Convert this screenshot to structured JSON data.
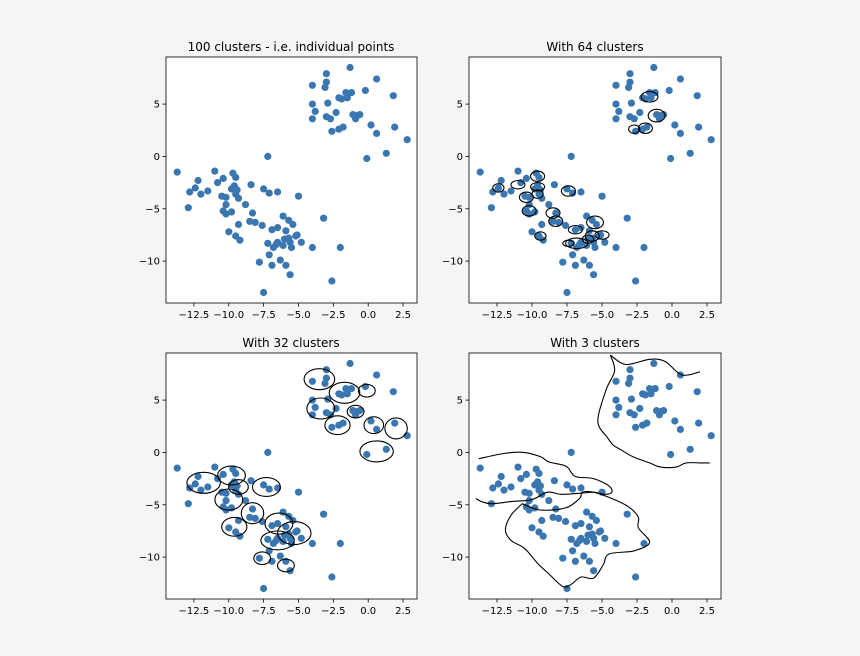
{
  "chart_data": [
    {
      "type": "scatter",
      "title": "100 clusters - i.e. individual points",
      "xlabel": "",
      "ylabel": "",
      "xlim": [
        -14.5,
        3.5
      ],
      "ylim": [
        -14,
        9.5
      ],
      "xticks": [
        -12.5,
        -10.0,
        -7.5,
        -5.0,
        -2.5,
        0.0,
        2.5
      ],
      "xtick_labels": [
        "−12.5",
        "−10.0",
        "−7.5",
        "−5.0",
        "−2.5",
        "0.0",
        "2.5"
      ],
      "yticks": [
        5,
        0,
        -5,
        -10
      ],
      "ytick_labels": [
        "5",
        "0",
        "−5",
        "−10"
      ],
      "grid": false
    },
    {
      "type": "scatter",
      "title": "With 64 clusters",
      "xlabel": "",
      "ylabel": "",
      "xlim": [
        -14.5,
        3.5
      ],
      "ylim": [
        -14,
        9.5
      ],
      "xticks": [
        -12.5,
        -10.0,
        -7.5,
        -5.0,
        -2.5,
        0.0,
        2.5
      ],
      "xtick_labels": [
        "−12.5",
        "−10.0",
        "−7.5",
        "−5.0",
        "−2.5",
        "0.0",
        "2.5"
      ],
      "yticks": [
        5,
        0,
        -5,
        -10
      ],
      "ytick_labels": [
        "5",
        "0",
        "−5",
        "−10"
      ],
      "grid": false
    },
    {
      "type": "scatter",
      "title": "With 32 clusters",
      "xlabel": "",
      "ylabel": "",
      "xlim": [
        -14.5,
        3.5
      ],
      "ylim": [
        -14,
        9.5
      ],
      "xticks": [
        -12.5,
        -10.0,
        -7.5,
        -5.0,
        -2.5,
        0.0,
        2.5
      ],
      "xtick_labels": [
        "−12.5",
        "−10.0",
        "−7.5",
        "−5.0",
        "−2.5",
        "0.0",
        "2.5"
      ],
      "yticks": [
        5,
        0,
        -5,
        -10
      ],
      "ytick_labels": [
        "5",
        "0",
        "−5",
        "−10"
      ],
      "grid": false
    },
    {
      "type": "scatter",
      "title": "With 3 clusters",
      "xlabel": "",
      "ylabel": "",
      "xlim": [
        -14.5,
        3.5
      ],
      "ylim": [
        -14,
        9.5
      ],
      "xticks": [
        -12.5,
        -10.0,
        -7.5,
        -5.0,
        -2.5,
        0.0,
        2.5
      ],
      "xtick_labels": [
        "−12.5",
        "−10.0",
        "−7.5",
        "−5.0",
        "−2.5",
        "0.0",
        "2.5"
      ],
      "yticks": [
        5,
        0,
        -5,
        -10
      ],
      "ytick_labels": [
        "5",
        "0",
        "−5",
        "−10"
      ],
      "grid": false
    }
  ],
  "points": [
    [
      -3.0,
      7.9
    ],
    [
      -1.3,
      8.5
    ],
    [
      0.6,
      7.4
    ],
    [
      -3.0,
      7.1
    ],
    [
      -4.0,
      6.8
    ],
    [
      -3.1,
      6.6
    ],
    [
      -0.2,
      6.3
    ],
    [
      -1.6,
      6.1
    ],
    [
      -1.2,
      6.1
    ],
    [
      1.8,
      5.8
    ],
    [
      -2.1,
      5.6
    ],
    [
      -1.9,
      5.5
    ],
    [
      -1.5,
      5.6
    ],
    [
      -4.0,
      5.0
    ],
    [
      -2.9,
      5.1
    ],
    [
      -3.8,
      4.3
    ],
    [
      -2.3,
      4.2
    ],
    [
      -1.1,
      4.0
    ],
    [
      -0.6,
      4.0
    ],
    [
      -0.9,
      3.6
    ],
    [
      -2.7,
      3.6
    ],
    [
      -3.0,
      3.8
    ],
    [
      -4.0,
      3.6
    ],
    [
      -0.8,
      3.9
    ],
    [
      0.2,
      3.0
    ],
    [
      -2.1,
      2.6
    ],
    [
      -2.6,
      2.4
    ],
    [
      -1.8,
      2.8
    ],
    [
      0.6,
      2.2
    ],
    [
      1.9,
      2.8
    ],
    [
      2.8,
      1.6
    ],
    [
      1.3,
      0.3
    ],
    [
      -0.1,
      -0.2
    ],
    [
      -7.2,
      0.0
    ],
    [
      -13.7,
      -1.5
    ],
    [
      -11.0,
      -1.4
    ],
    [
      -9.7,
      -1.6
    ],
    [
      -9.5,
      -2.0
    ],
    [
      -12.2,
      -2.3
    ],
    [
      -10.4,
      -2.1
    ],
    [
      -10.8,
      -2.5
    ],
    [
      -9.6,
      -2.8
    ],
    [
      -8.4,
      -2.7
    ],
    [
      -12.4,
      -3.0
    ],
    [
      -11.5,
      -3.3
    ],
    [
      -9.8,
      -3.1
    ],
    [
      -9.4,
      -3.2
    ],
    [
      -7.5,
      -3.1
    ],
    [
      -12.8,
      -3.4
    ],
    [
      -9.5,
      -3.6
    ],
    [
      -7.1,
      -3.5
    ],
    [
      -6.5,
      -3.4
    ],
    [
      -12.0,
      -3.6
    ],
    [
      -10.5,
      -3.8
    ],
    [
      -10.2,
      -3.9
    ],
    [
      -9.3,
      -4.0
    ],
    [
      -5.0,
      -3.8
    ],
    [
      -12.9,
      -4.9
    ],
    [
      -10.2,
      -4.6
    ],
    [
      -8.8,
      -4.6
    ],
    [
      -10.4,
      -5.2
    ],
    [
      -9.8,
      -5.3
    ],
    [
      -10.2,
      -5.5
    ],
    [
      -8.3,
      -5.4
    ],
    [
      -6.1,
      -5.7
    ],
    [
      -3.2,
      -5.9
    ],
    [
      -8.5,
      -6.2
    ],
    [
      -8.1,
      -6.3
    ],
    [
      -5.7,
      -6.1
    ],
    [
      -7.6,
      -6.6
    ],
    [
      -9.3,
      -6.5
    ],
    [
      -5.4,
      -6.5
    ],
    [
      -10.0,
      -7.2
    ],
    [
      -6.9,
      -7.0
    ],
    [
      -6.5,
      -6.8
    ],
    [
      -5.9,
      -7.1
    ],
    [
      -9.5,
      -7.6
    ],
    [
      -9.2,
      -8.0
    ],
    [
      -5.7,
      -7.8
    ],
    [
      -5.1,
      -7.5
    ],
    [
      -6.0,
      -7.9
    ],
    [
      -7.2,
      -8.3
    ],
    [
      -6.6,
      -8.4
    ],
    [
      -6.1,
      -8.5
    ],
    [
      -5.6,
      -8.2
    ],
    [
      -4.8,
      -8.2
    ],
    [
      -6.8,
      -8.7
    ],
    [
      -5.5,
      -8.7
    ],
    [
      -6.5,
      -8.2
    ],
    [
      -4.0,
      -8.7
    ],
    [
      -2.0,
      -8.7
    ],
    [
      -7.1,
      -9.4
    ],
    [
      -6.3,
      -9.9
    ],
    [
      -7.8,
      -10.1
    ],
    [
      -6.9,
      -10.4
    ],
    [
      -5.9,
      -10.4
    ],
    [
      -5.6,
      -11.3
    ],
    [
      -2.6,
      -11.9
    ],
    [
      -7.5,
      -13.0
    ],
    [
      -5.2,
      -7.6
    ]
  ],
  "clusters_64": [
    [
      -1.6,
      5.7,
      0.6,
      0.5
    ],
    [
      -1.1,
      3.9,
      0.6,
      0.6
    ],
    [
      -2.7,
      2.6,
      0.4,
      0.4
    ],
    [
      -1.9,
      2.7,
      0.5,
      0.5
    ],
    [
      -9.6,
      -1.9,
      0.5,
      0.5
    ],
    [
      -12.4,
      -3.0,
      0.4,
      0.4
    ],
    [
      -11.0,
      -2.7,
      0.5,
      0.4
    ],
    [
      -9.6,
      -2.9,
      0.5,
      0.4
    ],
    [
      -9.6,
      -3.6,
      0.4,
      0.4
    ],
    [
      -10.4,
      -3.9,
      0.5,
      0.5
    ],
    [
      -7.4,
      -3.3,
      0.5,
      0.5
    ],
    [
      -10.2,
      -5.2,
      0.5,
      0.5
    ],
    [
      -8.5,
      -5.4,
      0.5,
      0.5
    ],
    [
      -8.3,
      -6.2,
      0.5,
      0.5
    ],
    [
      -5.5,
      -6.3,
      0.6,
      0.6
    ],
    [
      -9.4,
      -7.6,
      0.4,
      0.4
    ],
    [
      -6.9,
      -7.0,
      0.5,
      0.4
    ],
    [
      -5.7,
      -7.6,
      0.5,
      0.5
    ],
    [
      -5.0,
      -7.5,
      0.5,
      0.4
    ],
    [
      -6.8,
      -8.3,
      0.8,
      0.5
    ],
    [
      -7.4,
      -8.3,
      0.4,
      0.3
    ],
    [
      -6.0,
      -7.9,
      0.4,
      0.4
    ]
  ],
  "clusters_32": [
    [
      -3.5,
      7.0,
      1.1,
      1.0
    ],
    [
      -1.7,
      5.7,
      1.1,
      1.0
    ],
    [
      -0.1,
      5.9,
      0.6,
      0.6
    ],
    [
      -3.4,
      4.2,
      1.0,
      1.0
    ],
    [
      -0.9,
      3.9,
      0.6,
      0.6
    ],
    [
      -2.2,
      2.6,
      0.9,
      0.9
    ],
    [
      0.4,
      2.6,
      0.7,
      0.8
    ],
    [
      2.0,
      2.3,
      0.8,
      1.0
    ],
    [
      0.6,
      0.1,
      1.2,
      1.0
    ],
    [
      -11.8,
      -2.9,
      1.2,
      1.0
    ],
    [
      -9.8,
      -2.2,
      1.0,
      0.9
    ],
    [
      -10.0,
      -4.5,
      1.0,
      1.0
    ],
    [
      -9.3,
      -3.3,
      0.7,
      0.7
    ],
    [
      -7.3,
      -3.3,
      1.0,
      0.9
    ],
    [
      -8.3,
      -5.8,
      0.8,
      1.0
    ],
    [
      -9.6,
      -7.1,
      0.9,
      0.9
    ],
    [
      -6.4,
      -6.8,
      1.0,
      1.0
    ],
    [
      -5.3,
      -7.7,
      1.2,
      1.1
    ],
    [
      -6.5,
      -8.4,
      1.2,
      0.9
    ],
    [
      -7.6,
      -10.1,
      0.6,
      0.6
    ],
    [
      -5.9,
      -10.8,
      0.6,
      0.6
    ]
  ],
  "boundaries_3": [
    [
      [
        -4.4,
        9.3
      ],
      [
        -3.3,
        8.4
      ],
      [
        -1.6,
        8.9
      ],
      [
        -0.5,
        8.7
      ],
      [
        0.7,
        7.4
      ],
      [
        2.0,
        7.7
      ]
    ],
    [
      [
        -4.4,
        9.3
      ],
      [
        -4.1,
        7.8
      ],
      [
        -4.7,
        6.0
      ],
      [
        -5.3,
        3.0
      ],
      [
        -4.6,
        1.4
      ],
      [
        -4.2,
        0.7
      ],
      [
        -3.7,
        0.3
      ],
      [
        -2.8,
        -0.4
      ],
      [
        -1.6,
        -1.0
      ],
      [
        -0.8,
        -1.4
      ],
      [
        0.3,
        -1.4
      ],
      [
        1.0,
        -1.0
      ],
      [
        2.0,
        -1.0
      ],
      [
        2.7,
        -1.0
      ]
    ],
    [
      [
        -13.8,
        -0.6
      ],
      [
        -12.0,
        -0.1
      ],
      [
        -10.6,
        0.0
      ],
      [
        -9.4,
        -0.4
      ],
      [
        -8.8,
        -0.9
      ],
      [
        -7.8,
        -1.2
      ],
      [
        -7.4,
        -1.5
      ],
      [
        -6.9,
        -2.3
      ],
      [
        -5.6,
        -2.5
      ],
      [
        -4.5,
        -3.2
      ],
      [
        -4.3,
        -3.8
      ],
      [
        -4.8,
        -4.0
      ],
      [
        -5.6,
        -3.8
      ],
      [
        -6.6,
        -3.9
      ],
      [
        -7.9,
        -4.0
      ],
      [
        -8.9,
        -3.8
      ],
      [
        -10.0,
        -4.5
      ],
      [
        -11.5,
        -4.7
      ],
      [
        -12.9,
        -4.9
      ],
      [
        -13.6,
        -4.7
      ],
      [
        -14.0,
        -4.4
      ]
    ],
    [
      [
        -10.7,
        -4.9
      ],
      [
        -9.4,
        -5.5
      ],
      [
        -7.6,
        -5.3
      ],
      [
        -6.6,
        -4.4
      ],
      [
        -6.4,
        -3.8
      ],
      [
        -5.6,
        -3.8
      ],
      [
        -4.3,
        -4.4
      ],
      [
        -3.1,
        -5.2
      ],
      [
        -2.4,
        -6.2
      ],
      [
        -2.4,
        -7.2
      ],
      [
        -1.6,
        -8.6
      ],
      [
        -2.7,
        -9.4
      ],
      [
        -4.5,
        -9.7
      ],
      [
        -4.9,
        -10.7
      ],
      [
        -5.6,
        -12.0
      ],
      [
        -6.5,
        -11.9
      ],
      [
        -7.2,
        -12.6
      ],
      [
        -7.8,
        -12.8
      ],
      [
        -8.8,
        -11.6
      ],
      [
        -9.6,
        -10.6
      ],
      [
        -10.5,
        -9.2
      ],
      [
        -11.5,
        -8.4
      ],
      [
        -11.9,
        -7.4
      ],
      [
        -11.5,
        -6.0
      ],
      [
        -10.7,
        -4.9
      ]
    ]
  ],
  "colors": {
    "points": "#3a76b0",
    "lines": "#000000",
    "figure_bg": "#f5f5f5",
    "axes_bg": "#ffffff"
  }
}
